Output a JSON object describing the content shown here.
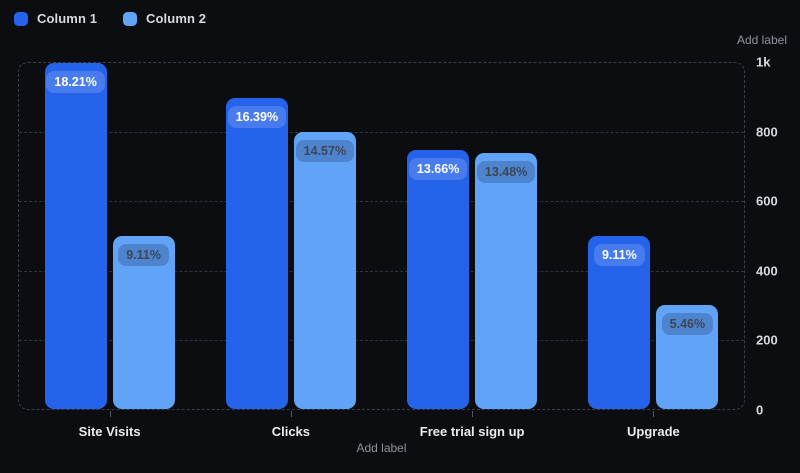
{
  "legend": {
    "items": [
      {
        "label": "Column 1",
        "color": "#2563eb"
      },
      {
        "label": "Column 2",
        "color": "#61a3f7"
      }
    ]
  },
  "y_axis": {
    "title": "Add label",
    "ticks": [
      "1k",
      "800",
      "600",
      "400",
      "200",
      "0"
    ]
  },
  "x_axis": {
    "title": "Add label"
  },
  "chart_data": {
    "type": "bar",
    "title": "",
    "categories": [
      "Site Visits",
      "Clicks",
      "Free trial sign up",
      "Upgrade"
    ],
    "series": [
      {
        "name": "Column 1",
        "color": "#2563eb",
        "values": [
          1000,
          900,
          750,
          500
        ],
        "labels": [
          "18.21%",
          "16.39%",
          "13.66%",
          "9.11%"
        ]
      },
      {
        "name": "Column 2",
        "color": "#61a3f7",
        "values": [
          500,
          800,
          740,
          300
        ],
        "labels": [
          "9.11%",
          "14.57%",
          "13.48%",
          "5.46%"
        ]
      }
    ],
    "ylim": [
      0,
      1000
    ],
    "grid": "dashed-horizontal",
    "legend_position": "top-left",
    "value_axis_side": "right"
  },
  "colors": {
    "background": "#0c0d11",
    "grid": "#30343b",
    "plot_border": "#3a3e46",
    "series1": "#2563eb",
    "series2": "#61a3f7",
    "axis_text": "#d6d9dd",
    "muted_text": "#8e949c"
  }
}
